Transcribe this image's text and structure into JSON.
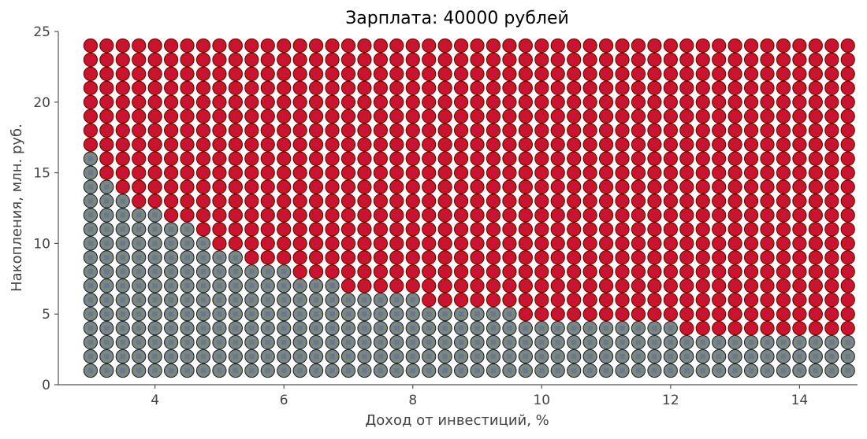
{
  "chart_data": {
    "type": "scatter",
    "title": "Зарплата: 40000 рублей",
    "xlabel": "Доход от инвестиций, %",
    "ylabel": "Накопления, млн. руб.",
    "xlim": [
      2.5,
      14.9
    ],
    "ylim": [
      0,
      25
    ],
    "x_ticks": [
      4,
      6,
      8,
      10,
      12,
      14
    ],
    "x_tick_labels": [
      "4",
      "6",
      "8",
      "10",
      "12",
      "14"
    ],
    "y_ticks": [
      0,
      5,
      10,
      15,
      20,
      25
    ],
    "y_tick_labels": [
      "0",
      "5",
      "10",
      "15",
      "20",
      "25"
    ],
    "grid": false,
    "x_values": {
      "start": 3.0,
      "step": 0.25,
      "count": 48
    },
    "y_values": {
      "start": 1,
      "step": 1,
      "count": 24
    },
    "threshold_series": {
      "description_x": "investment return %",
      "breakpoints": [
        {
          "x_from": 3.0,
          "x_to": 3.0,
          "min_red_y": 17
        },
        {
          "x_from": 3.25,
          "x_to": 3.25,
          "min_red_y": 15
        },
        {
          "x_from": 3.5,
          "x_to": 3.5,
          "min_red_y": 14
        },
        {
          "x_from": 3.75,
          "x_to": 4.0,
          "min_red_y": 13
        },
        {
          "x_from": 4.25,
          "x_to": 4.5,
          "min_red_y": 12
        },
        {
          "x_from": 4.75,
          "x_to": 4.75,
          "min_red_y": 11
        },
        {
          "x_from": 5.0,
          "x_to": 5.25,
          "min_red_y": 10
        },
        {
          "x_from": 5.5,
          "x_to": 6.0,
          "min_red_y": 9
        },
        {
          "x_from": 6.25,
          "x_to": 6.75,
          "min_red_y": 8
        },
        {
          "x_from": 7.0,
          "x_to": 8.0,
          "min_red_y": 7
        },
        {
          "x_from": 8.25,
          "x_to": 9.5,
          "min_red_y": 6
        },
        {
          "x_from": 9.75,
          "x_to": 12.0,
          "min_red_y": 5
        },
        {
          "x_from": 12.25,
          "x_to": 14.75,
          "min_red_y": 4
        }
      ]
    },
    "series": [
      {
        "category": "above",
        "color": "#d8101c",
        "edge": "#4a0a12",
        "inner": "#b01a5a"
      },
      {
        "category": "below",
        "color": "#7a8a78",
        "edge": "#1a1a40",
        "inner": "#6a6ea0"
      }
    ]
  }
}
